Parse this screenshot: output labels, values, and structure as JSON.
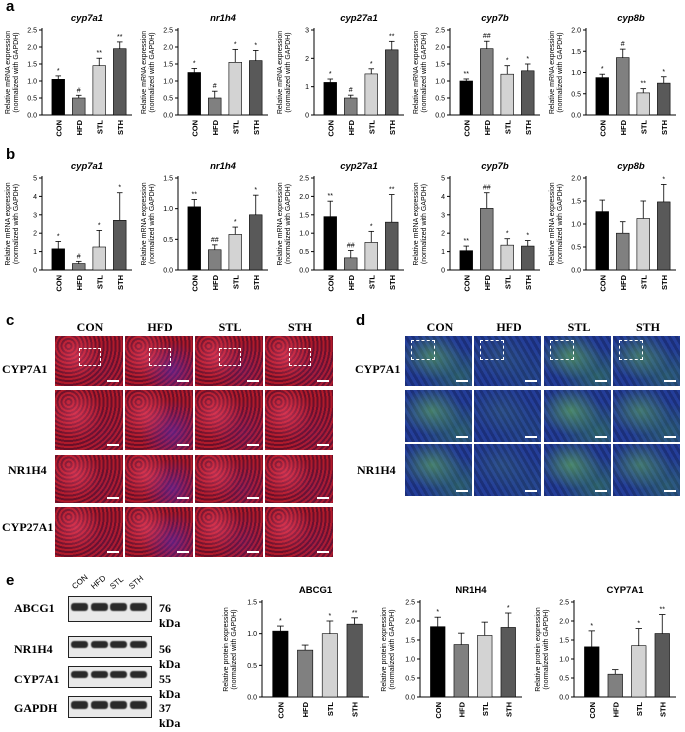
{
  "panels": {
    "a": "a",
    "b": "b",
    "c": "c",
    "d": "d",
    "e": "e"
  },
  "common": {
    "ylabel_mrna": "Relative mRNA expression\n(normalized with GAPDH)",
    "ylabel_protein": "Relative protein expression\n(normalized with GAPDH)",
    "groups": [
      "CON",
      "HFD",
      "STL",
      "STH"
    ]
  },
  "chart_data": [
    {
      "id": "a1",
      "type": "bar",
      "title": "cyp7a1",
      "ylim": [
        0,
        2.5
      ],
      "ticks": [
        0,
        0.5,
        1.0,
        1.5,
        2.0,
        2.5
      ],
      "tickfmt": 1,
      "categories": [
        "CON",
        "HFD",
        "STL",
        "STH"
      ],
      "values": [
        1.05,
        0.5,
        1.45,
        1.95
      ],
      "errors": [
        0.1,
        0.08,
        0.22,
        0.2
      ],
      "marks": [
        "*",
        "#",
        "**",
        "**"
      ],
      "colors": [
        "#000000",
        "#808080",
        "#d3d3d3",
        "#595959"
      ]
    },
    {
      "id": "a2",
      "type": "bar",
      "title": "nr1h4",
      "ylim": [
        0,
        2.5
      ],
      "ticks": [
        0,
        0.5,
        1.0,
        1.5,
        2.0,
        2.5
      ],
      "tickfmt": 1,
      "categories": [
        "CON",
        "HFD",
        "STL",
        "STH"
      ],
      "values": [
        1.25,
        0.5,
        1.55,
        1.6
      ],
      "errors": [
        0.12,
        0.2,
        0.38,
        0.3
      ],
      "marks": [
        "*",
        "#",
        "*",
        "*"
      ],
      "colors": [
        "#000000",
        "#808080",
        "#d3d3d3",
        "#595959"
      ]
    },
    {
      "id": "a3",
      "type": "bar",
      "title": "cyp27a1",
      "ylim": [
        0,
        3
      ],
      "ticks": [
        0,
        1,
        2,
        3
      ],
      "tickfmt": 0,
      "categories": [
        "CON",
        "HFD",
        "STL",
        "STH"
      ],
      "values": [
        1.15,
        0.6,
        1.45,
        2.3
      ],
      "errors": [
        0.12,
        0.1,
        0.18,
        0.3
      ],
      "marks": [
        "*",
        "#",
        "*",
        "**"
      ],
      "colors": [
        "#000000",
        "#808080",
        "#d3d3d3",
        "#595959"
      ]
    },
    {
      "id": "a4",
      "type": "bar",
      "title": "cyp7b",
      "ylim": [
        0,
        2.5
      ],
      "ticks": [
        0,
        0.5,
        1.0,
        1.5,
        2.0,
        2.5
      ],
      "tickfmt": 1,
      "categories": [
        "CON",
        "HFD",
        "STL",
        "STH"
      ],
      "values": [
        1.0,
        1.95,
        1.2,
        1.3
      ],
      "errors": [
        0.06,
        0.22,
        0.25,
        0.2
      ],
      "marks": [
        "**",
        "##",
        "*",
        "*"
      ],
      "colors": [
        "#000000",
        "#808080",
        "#d3d3d3",
        "#595959"
      ]
    },
    {
      "id": "a5",
      "type": "bar",
      "title": "cyp8b",
      "ylim": [
        0,
        2.0
      ],
      "ticks": [
        0,
        0.5,
        1.0,
        1.5,
        2.0
      ],
      "tickfmt": 1,
      "categories": [
        "CON",
        "HFD",
        "STL",
        "STH"
      ],
      "values": [
        0.88,
        1.35,
        0.52,
        0.75
      ],
      "errors": [
        0.08,
        0.2,
        0.1,
        0.15
      ],
      "marks": [
        "*",
        "#",
        "**",
        "*"
      ],
      "colors": [
        "#000000",
        "#808080",
        "#d3d3d3",
        "#595959"
      ]
    },
    {
      "id": "b1",
      "type": "bar",
      "title": "cyp7a1",
      "ylim": [
        0,
        5
      ],
      "ticks": [
        0,
        1,
        2,
        3,
        4,
        5
      ],
      "tickfmt": 0,
      "categories": [
        "CON",
        "HFD",
        "STL",
        "STH"
      ],
      "values": [
        1.15,
        0.35,
        1.25,
        2.7
      ],
      "errors": [
        0.4,
        0.12,
        0.9,
        1.5
      ],
      "marks": [
        "*",
        "#",
        "*",
        "*"
      ],
      "colors": [
        "#000000",
        "#808080",
        "#d3d3d3",
        "#595959"
      ]
    },
    {
      "id": "b2",
      "type": "bar",
      "title": "nr1h4",
      "ylim": [
        0,
        1.5
      ],
      "ticks": [
        0,
        0.5,
        1.0,
        1.5
      ],
      "tickfmt": 1,
      "categories": [
        "CON",
        "HFD",
        "STL",
        "STH"
      ],
      "values": [
        1.03,
        0.33,
        0.58,
        0.9
      ],
      "errors": [
        0.12,
        0.08,
        0.12,
        0.32
      ],
      "marks": [
        "**",
        "##",
        "*",
        "*"
      ],
      "colors": [
        "#000000",
        "#808080",
        "#d3d3d3",
        "#595959"
      ]
    },
    {
      "id": "b3",
      "type": "bar",
      "title": "cyp27a1",
      "ylim": [
        0,
        2.5
      ],
      "ticks": [
        0,
        0.5,
        1.0,
        1.5,
        2.0,
        2.5
      ],
      "tickfmt": 1,
      "categories": [
        "CON",
        "HFD",
        "STL",
        "STH"
      ],
      "values": [
        1.45,
        0.33,
        0.75,
        1.3
      ],
      "errors": [
        0.42,
        0.2,
        0.3,
        0.75
      ],
      "marks": [
        "**",
        "##",
        "*",
        "**"
      ],
      "colors": [
        "#000000",
        "#808080",
        "#d3d3d3",
        "#595959"
      ]
    },
    {
      "id": "b4",
      "type": "bar",
      "title": "cyp7b",
      "ylim": [
        0,
        5
      ],
      "ticks": [
        0,
        1,
        2,
        3,
        4,
        5
      ],
      "tickfmt": 0,
      "categories": [
        "CON",
        "HFD",
        "STL",
        "STH"
      ],
      "values": [
        1.05,
        3.35,
        1.35,
        1.3
      ],
      "errors": [
        0.25,
        0.85,
        0.35,
        0.3
      ],
      "marks": [
        "**",
        "##",
        "*",
        "*"
      ],
      "colors": [
        "#000000",
        "#808080",
        "#d3d3d3",
        "#595959"
      ]
    },
    {
      "id": "b5",
      "type": "bar",
      "title": "cyp8b",
      "ylim": [
        0,
        2.0
      ],
      "ticks": [
        0,
        0.5,
        1.0,
        1.5,
        2.0
      ],
      "tickfmt": 1,
      "categories": [
        "CON",
        "HFD",
        "STL",
        "STH"
      ],
      "values": [
        1.27,
        0.8,
        1.12,
        1.48
      ],
      "errors": [
        0.25,
        0.25,
        0.38,
        0.38
      ],
      "marks": [
        "",
        "",
        "",
        "*"
      ],
      "colors": [
        "#000000",
        "#808080",
        "#d3d3d3",
        "#595959"
      ]
    },
    {
      "id": "e1",
      "type": "bar",
      "title": "ABCG1",
      "ylim": [
        0,
        1.5
      ],
      "ticks": [
        0,
        0.5,
        1.0,
        1.5
      ],
      "tickfmt": 1,
      "categories": [
        "CON",
        "HFD",
        "STL",
        "STH"
      ],
      "values": [
        1.04,
        0.74,
        1.0,
        1.15
      ],
      "errors": [
        0.08,
        0.08,
        0.2,
        0.1
      ],
      "marks": [
        "*",
        "",
        "*",
        "**"
      ],
      "colors": [
        "#000000",
        "#808080",
        "#d3d3d3",
        "#595959"
      ]
    },
    {
      "id": "e2",
      "type": "bar",
      "title": "NR1H4",
      "ylim": [
        0,
        2.5
      ],
      "ticks": [
        0,
        0.5,
        1.0,
        1.5,
        2.0,
        2.5
      ],
      "tickfmt": 1,
      "categories": [
        "CON",
        "HFD",
        "STL",
        "STH"
      ],
      "values": [
        1.85,
        1.38,
        1.62,
        1.83
      ],
      "errors": [
        0.25,
        0.3,
        0.35,
        0.38
      ],
      "marks": [
        "*",
        "",
        "",
        "*"
      ],
      "colors": [
        "#000000",
        "#808080",
        "#d3d3d3",
        "#595959"
      ]
    },
    {
      "id": "e3",
      "type": "bar",
      "title": "CYP7A1",
      "ylim": [
        0,
        2.5
      ],
      "ticks": [
        0,
        0.5,
        1.0,
        1.5,
        2.0,
        2.5
      ],
      "tickfmt": 1,
      "categories": [
        "CON",
        "HFD",
        "STL",
        "STH"
      ],
      "values": [
        1.32,
        0.6,
        1.35,
        1.67
      ],
      "errors": [
        0.42,
        0.12,
        0.45,
        0.5
      ],
      "marks": [
        "*",
        "",
        "*",
        "**"
      ],
      "colors": [
        "#000000",
        "#808080",
        "#d3d3d3",
        "#595959"
      ]
    }
  ],
  "micro_c": {
    "columns": [
      "CON",
      "HFD",
      "STL",
      "STH"
    ],
    "rows": [
      "CYP7A1",
      "",
      "NR1H4",
      "CYP27A1"
    ],
    "colors": {
      "red": "#b01a2a",
      "blue": "#2d1a70"
    }
  },
  "micro_d": {
    "columns": [
      "CON",
      "HFD",
      "STL",
      "STH"
    ],
    "rows": [
      "CYP7A1",
      "",
      "NR1H4"
    ],
    "colors": {
      "green": "#5fc23a",
      "blue": "#1f3a9a"
    }
  },
  "blot": {
    "lanes": [
      "CON",
      "HFD",
      "STL",
      "STH"
    ],
    "proteins": [
      "ABCG1",
      "NR1H4",
      "CYP7A1",
      "GAPDH"
    ],
    "kda": [
      "76  kDa",
      "56  kDa",
      "55  kDa",
      "37  kDa"
    ]
  }
}
